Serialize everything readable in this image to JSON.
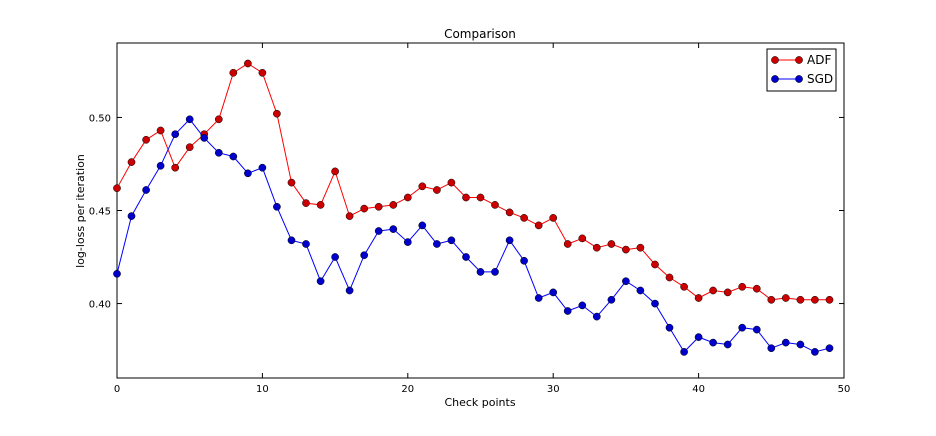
{
  "chart_data": {
    "type": "line",
    "title": "Comparison",
    "xlabel": "Check points",
    "ylabel": "log-loss per iteration",
    "xlim": [
      0,
      50
    ],
    "ylim": [
      0.36,
      0.54
    ],
    "xticks": [
      0,
      10,
      20,
      30,
      40,
      50
    ],
    "xtick_labels": [
      "0",
      "10",
      "20",
      "30",
      "40",
      "50"
    ],
    "yticks": [
      0.4,
      0.45,
      0.5
    ],
    "ytick_labels": [
      "0.40",
      "0.45",
      "0.50"
    ],
    "grid": false,
    "legend_position": "top-right",
    "series": [
      {
        "name": "ADF",
        "color": "#ff0000",
        "marker_color": "#cc0000",
        "x": [
          0,
          1,
          2,
          3,
          4,
          5,
          6,
          7,
          8,
          9,
          10,
          11,
          12,
          13,
          14,
          15,
          16,
          17,
          18,
          19,
          20,
          21,
          22,
          23,
          24,
          25,
          26,
          27,
          28,
          29,
          30,
          31,
          32,
          33,
          34,
          35,
          36,
          37,
          38,
          39,
          40,
          41,
          42,
          43,
          44,
          45,
          46,
          47,
          48,
          49
        ],
        "values": [
          0.462,
          0.476,
          0.488,
          0.493,
          0.473,
          0.484,
          0.491,
          0.499,
          0.524,
          0.529,
          0.524,
          0.502,
          0.465,
          0.454,
          0.453,
          0.471,
          0.447,
          0.451,
          0.452,
          0.453,
          0.457,
          0.463,
          0.461,
          0.465,
          0.457,
          0.457,
          0.453,
          0.449,
          0.446,
          0.442,
          0.446,
          0.432,
          0.435,
          0.43,
          0.432,
          0.429,
          0.43,
          0.421,
          0.414,
          0.409,
          0.403,
          0.407,
          0.406,
          0.409,
          0.408,
          0.402,
          0.403,
          0.402,
          0.402,
          0.402
        ]
      },
      {
        "name": "SGD",
        "color": "#0000ff",
        "marker_color": "#0000cc",
        "x": [
          0,
          1,
          2,
          3,
          4,
          5,
          6,
          7,
          8,
          9,
          10,
          11,
          12,
          13,
          14,
          15,
          16,
          17,
          18,
          19,
          20,
          21,
          22,
          23,
          24,
          25,
          26,
          27,
          28,
          29,
          30,
          31,
          32,
          33,
          34,
          35,
          36,
          37,
          38,
          39,
          40,
          41,
          42,
          43,
          44,
          45,
          46,
          47,
          48,
          49
        ],
        "values": [
          0.416,
          0.447,
          0.461,
          0.474,
          0.491,
          0.499,
          0.489,
          0.481,
          0.479,
          0.47,
          0.473,
          0.452,
          0.434,
          0.432,
          0.412,
          0.425,
          0.407,
          0.426,
          0.439,
          0.44,
          0.433,
          0.442,
          0.432,
          0.434,
          0.425,
          0.417,
          0.417,
          0.434,
          0.423,
          0.403,
          0.406,
          0.396,
          0.399,
          0.393,
          0.402,
          0.412,
          0.407,
          0.4,
          0.387,
          0.374,
          0.382,
          0.379,
          0.378,
          0.387,
          0.386,
          0.376,
          0.379,
          0.378,
          0.374,
          0.376
        ]
      }
    ]
  }
}
